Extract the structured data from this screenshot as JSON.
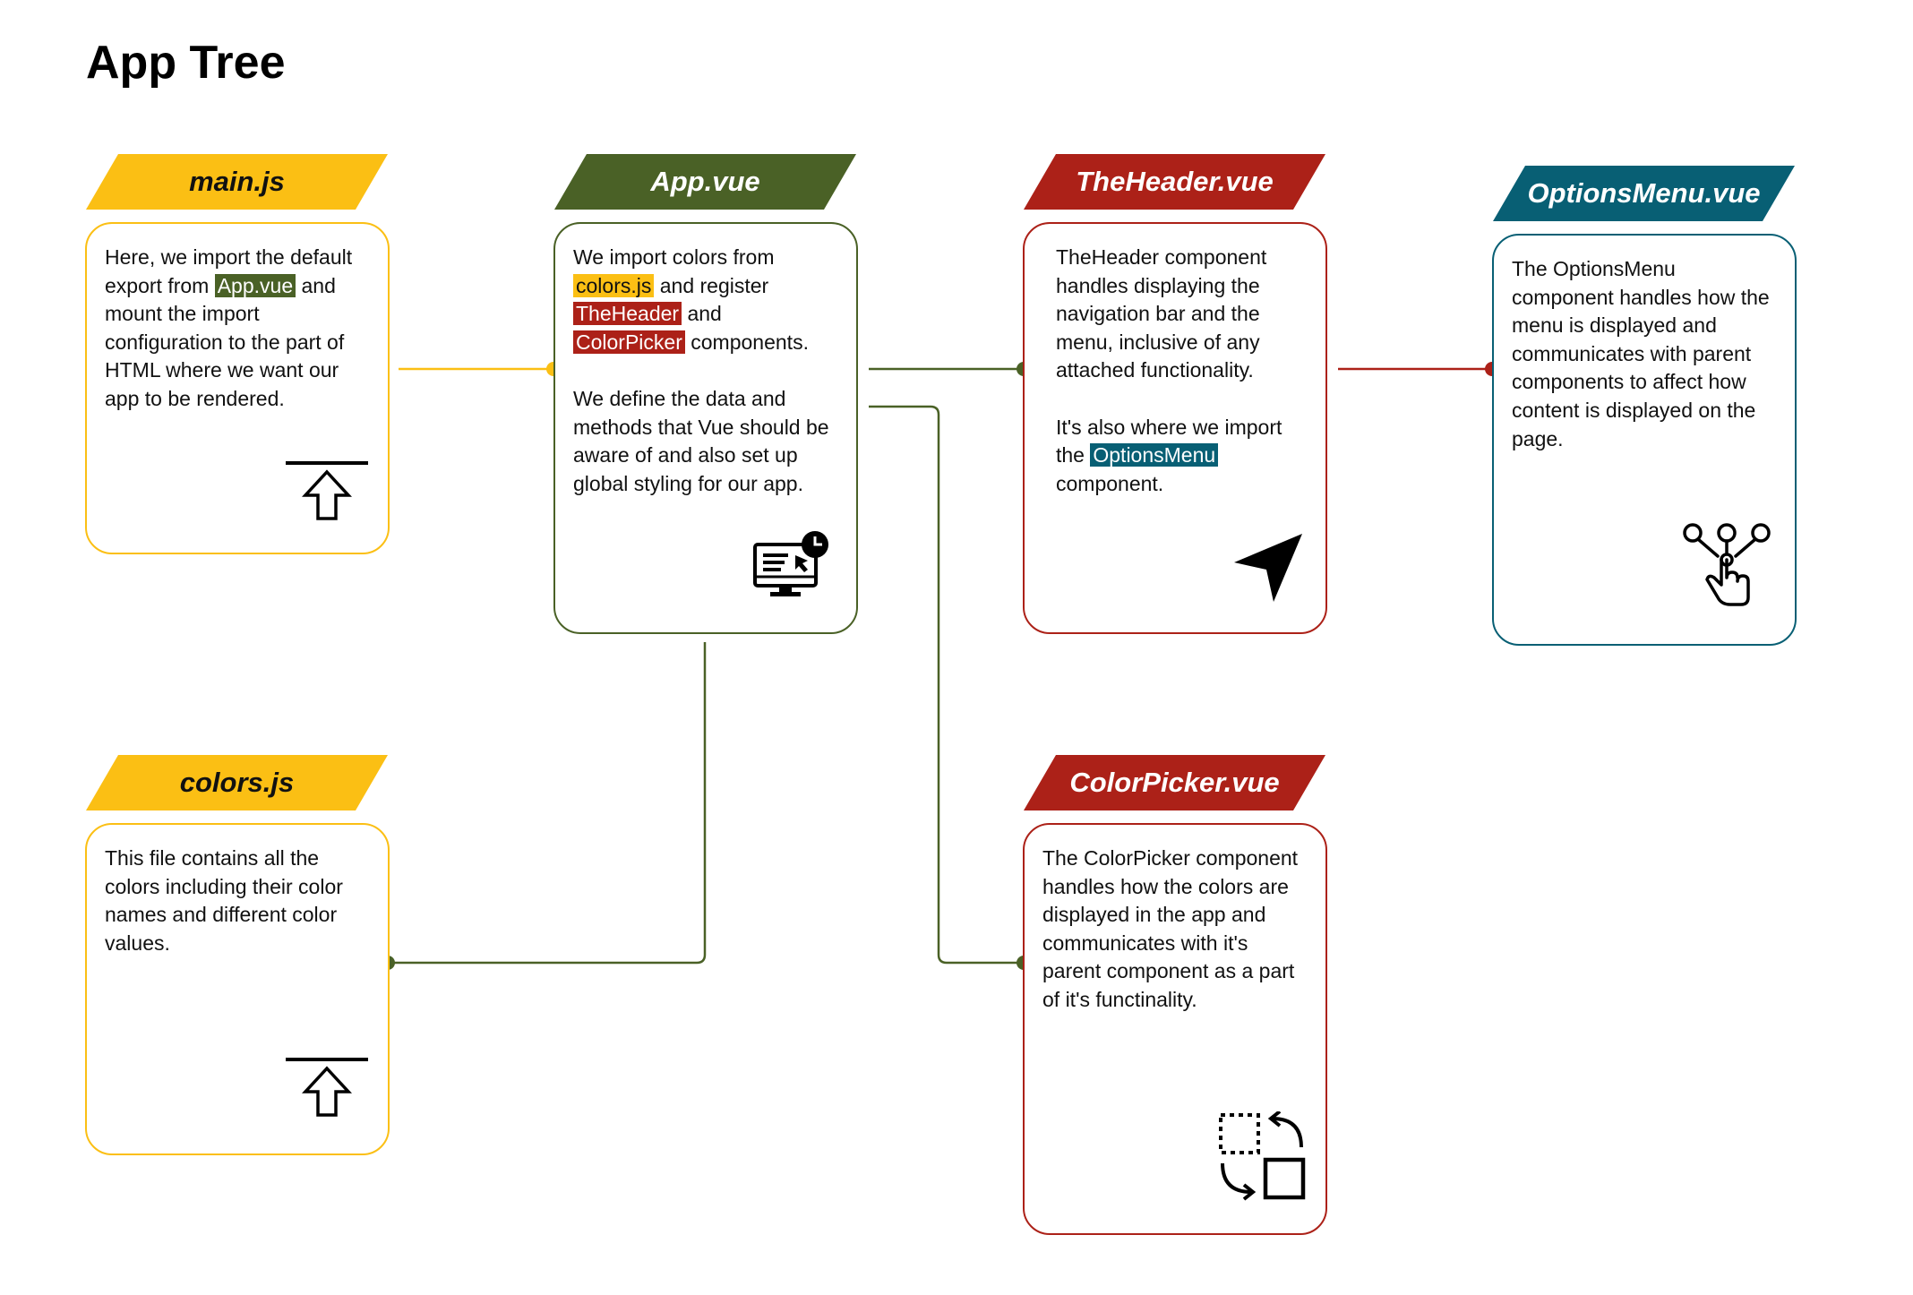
{
  "title": "App Tree",
  "colors": {
    "yellow": "#FBBF14",
    "green": "#4A6126",
    "red": "#AC2118",
    "teal": "#085F74"
  },
  "nodes": {
    "main_js": {
      "label": "main.js",
      "text": {
        "before": "Here, we import the default export from",
        "highlight": "App.vue",
        "after": "and mount the import configuration to the part of HTML where we want our app to be rendered."
      },
      "icon": "upload-arrow-icon"
    },
    "app_vue": {
      "label": "App.vue",
      "text": {
        "p1_a": "We import colors from",
        "p1_hl1": "colors.js",
        "p1_b": "and register",
        "p1_hl2": "TheHeader",
        "p1_c": "and",
        "p1_hl3": "ColorPicker",
        "p1_d": "components.",
        "p2": "We define the data and methods that Vue should be aware of and also set up global styling for our app."
      },
      "icon": "monitor-dashboard-icon"
    },
    "the_header_vue": {
      "label": "TheHeader.vue",
      "text": {
        "p1": "TheHeader component handles displaying the navigation bar and the menu, inclusive of any attached functionality.",
        "p2_a": "It's also where we import the",
        "p2_hl": "OptionsMenu",
        "p2_b": "component."
      },
      "icon": "navigation-arrow-icon"
    },
    "options_menu_vue": {
      "label": "OptionsMenu.vue",
      "text": "The OptionsMenu component handles how the menu is displayed and communicates with parent components to affect how content is displayed on the page.",
      "icon": "touch-select-icon"
    },
    "colors_js": {
      "label": "colors.js",
      "text": "This file contains all the colors including their color names and different color values.",
      "icon": "upload-arrow-icon"
    },
    "color_picker_vue": {
      "label": "ColorPicker.vue",
      "text": "The ColorPicker component handles how the colors are displayed in the app and communicates with it's parent component as a part of it's functinality.",
      "icon": "swap-squares-icon"
    }
  }
}
